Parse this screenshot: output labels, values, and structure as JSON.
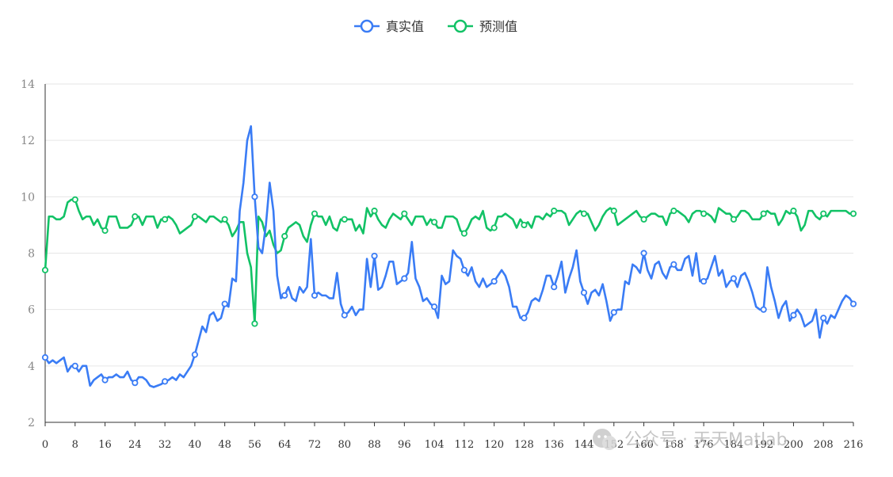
{
  "chart_data": {
    "type": "line",
    "title": "",
    "xlabel": "",
    "ylabel": "",
    "ylim": [
      2,
      14
    ],
    "yticks": [
      2,
      4,
      6,
      8,
      10,
      12,
      14
    ],
    "xlim": [
      0,
      216
    ],
    "xticks": [
      "0",
      "8",
      "16",
      "24",
      "32",
      "40",
      "48",
      "56",
      "64",
      "72",
      "80",
      "88",
      "96",
      "104",
      "112",
      "120",
      "128",
      "136",
      "144",
      "152",
      "160",
      "168",
      "176",
      "184",
      "192",
      "200",
      "208",
      "216"
    ],
    "grid": "horizontal",
    "legend_position": "top-center",
    "series": [
      {
        "name": "真实值",
        "color": "#3a7cf5",
        "values": [
          4.3,
          4.1,
          4.2,
          4.1,
          4.2,
          4.3,
          3.8,
          4.0,
          4.0,
          3.8,
          4.0,
          4.0,
          3.3,
          3.5,
          3.6,
          3.7,
          3.5,
          3.6,
          3.6,
          3.7,
          3.6,
          3.6,
          3.8,
          3.5,
          3.4,
          3.6,
          3.6,
          3.5,
          3.3,
          3.25,
          3.3,
          3.35,
          3.45,
          3.5,
          3.6,
          3.5,
          3.7,
          3.6,
          3.8,
          4.0,
          4.4,
          4.9,
          5.4,
          5.2,
          5.8,
          5.9,
          5.6,
          5.7,
          6.2,
          6.1,
          7.1,
          7.0,
          9.5,
          10.5,
          12.0,
          12.5,
          10.0,
          8.2,
          8.0,
          9.0,
          10.5,
          9.5,
          7.2,
          6.4,
          6.5,
          6.8,
          6.4,
          6.3,
          6.8,
          6.6,
          6.8,
          8.5,
          6.5,
          6.6,
          6.5,
          6.5,
          6.4,
          6.4,
          7.3,
          6.2,
          5.8,
          5.9,
          6.1,
          5.8,
          6.0,
          6.0,
          7.8,
          6.8,
          7.9,
          6.7,
          6.8,
          7.2,
          7.7,
          7.7,
          6.9,
          7.0,
          7.1,
          7.3,
          8.4,
          7.1,
          6.8,
          6.3,
          6.4,
          6.2,
          6.1,
          5.7,
          7.2,
          6.9,
          7.0,
          8.1,
          7.9,
          7.8,
          7.4,
          7.2,
          7.5,
          7.0,
          6.8,
          7.1,
          6.8,
          6.9,
          7.0,
          7.2,
          7.4,
          7.2,
          6.8,
          6.1,
          6.1,
          5.7,
          5.7,
          5.9,
          6.3,
          6.4,
          6.3,
          6.7,
          7.2,
          7.2,
          6.8,
          7.2,
          7.7,
          6.6,
          7.1,
          7.5,
          8.1,
          7.0,
          6.6,
          6.2,
          6.6,
          6.7,
          6.5,
          6.9,
          6.3,
          5.6,
          5.9,
          6.0,
          6.0,
          7.0,
          6.9,
          7.6,
          7.5,
          7.3,
          8.0,
          7.4,
          7.1,
          7.6,
          7.7,
          7.3,
          7.1,
          7.5,
          7.6,
          7.4,
          7.4,
          7.8,
          7.9,
          7.2,
          8.0,
          7.0,
          7.0,
          7.1,
          7.5,
          7.9,
          7.2,
          7.4,
          6.8,
          7.0,
          7.1,
          6.8,
          7.2,
          7.3,
          7.0,
          6.6,
          6.1,
          6.0,
          6.0,
          7.5,
          6.8,
          6.3,
          5.7,
          6.1,
          6.3,
          5.6,
          5.8,
          6.0,
          5.8,
          5.4,
          5.5,
          5.6,
          6.0,
          5.0,
          5.7,
          5.5,
          5.8,
          5.7,
          6.0,
          6.3,
          6.5,
          6.4,
          6.2
        ]
      },
      {
        "name": "预测值",
        "color": "#12c266",
        "values": [
          7.4,
          9.3,
          9.3,
          9.2,
          9.2,
          9.3,
          9.8,
          9.9,
          9.9,
          9.5,
          9.2,
          9.3,
          9.3,
          9.0,
          9.2,
          8.9,
          8.8,
          9.3,
          9.3,
          9.3,
          8.9,
          8.9,
          8.9,
          9.0,
          9.3,
          9.3,
          9.0,
          9.3,
          9.3,
          9.3,
          8.9,
          9.2,
          9.2,
          9.3,
          9.2,
          9.0,
          8.7,
          8.8,
          8.9,
          9.0,
          9.3,
          9.3,
          9.2,
          9.1,
          9.3,
          9.3,
          9.2,
          9.1,
          9.2,
          9.0,
          8.6,
          8.8,
          9.1,
          9.1,
          8.0,
          7.5,
          5.5,
          9.3,
          9.1,
          8.6,
          8.8,
          8.3,
          8.0,
          8.1,
          8.6,
          8.9,
          9.0,
          9.1,
          9.0,
          8.6,
          8.4,
          9.0,
          9.4,
          9.3,
          9.3,
          9.0,
          9.3,
          8.9,
          8.8,
          9.2,
          9.2,
          9.2,
          9.2,
          8.8,
          9.0,
          8.7,
          9.6,
          9.3,
          9.5,
          9.2,
          9.0,
          8.9,
          9.2,
          9.4,
          9.3,
          9.2,
          9.4,
          9.2,
          9.0,
          9.3,
          9.3,
          9.3,
          9.0,
          9.2,
          9.1,
          8.9,
          8.9,
          9.3,
          9.3,
          9.3,
          9.2,
          8.8,
          8.7,
          8.9,
          9.2,
          9.3,
          9.2,
          9.5,
          8.9,
          8.8,
          8.9,
          9.3,
          9.3,
          9.4,
          9.3,
          9.2,
          8.9,
          9.2,
          9.0,
          9.1,
          8.9,
          9.3,
          9.3,
          9.2,
          9.4,
          9.3,
          9.5,
          9.5,
          9.5,
          9.4,
          9.0,
          9.2,
          9.4,
          9.5,
          9.4,
          9.4,
          9.1,
          8.8,
          9.0,
          9.3,
          9.5,
          9.6,
          9.5,
          9.0,
          9.1,
          9.2,
          9.3,
          9.4,
          9.5,
          9.3,
          9.2,
          9.3,
          9.4,
          9.4,
          9.3,
          9.3,
          9.0,
          9.4,
          9.5,
          9.5,
          9.4,
          9.3,
          9.1,
          9.4,
          9.5,
          9.5,
          9.4,
          9.4,
          9.3,
          9.1,
          9.6,
          9.5,
          9.4,
          9.4,
          9.2,
          9.3,
          9.5,
          9.5,
          9.4,
          9.2,
          9.2,
          9.2,
          9.4,
          9.5,
          9.4,
          9.4,
          9.0,
          9.2,
          9.5,
          9.4,
          9.5,
          9.3,
          8.8,
          9.0,
          9.5,
          9.5,
          9.3,
          9.2,
          9.4,
          9.3,
          9.5,
          9.5,
          9.5,
          9.5,
          9.5,
          9.4,
          9.4
        ]
      }
    ],
    "marker_every": 8
  },
  "watermark": {
    "text": "公众号 · 天天Matlab",
    "icon": "wechat-icon"
  }
}
